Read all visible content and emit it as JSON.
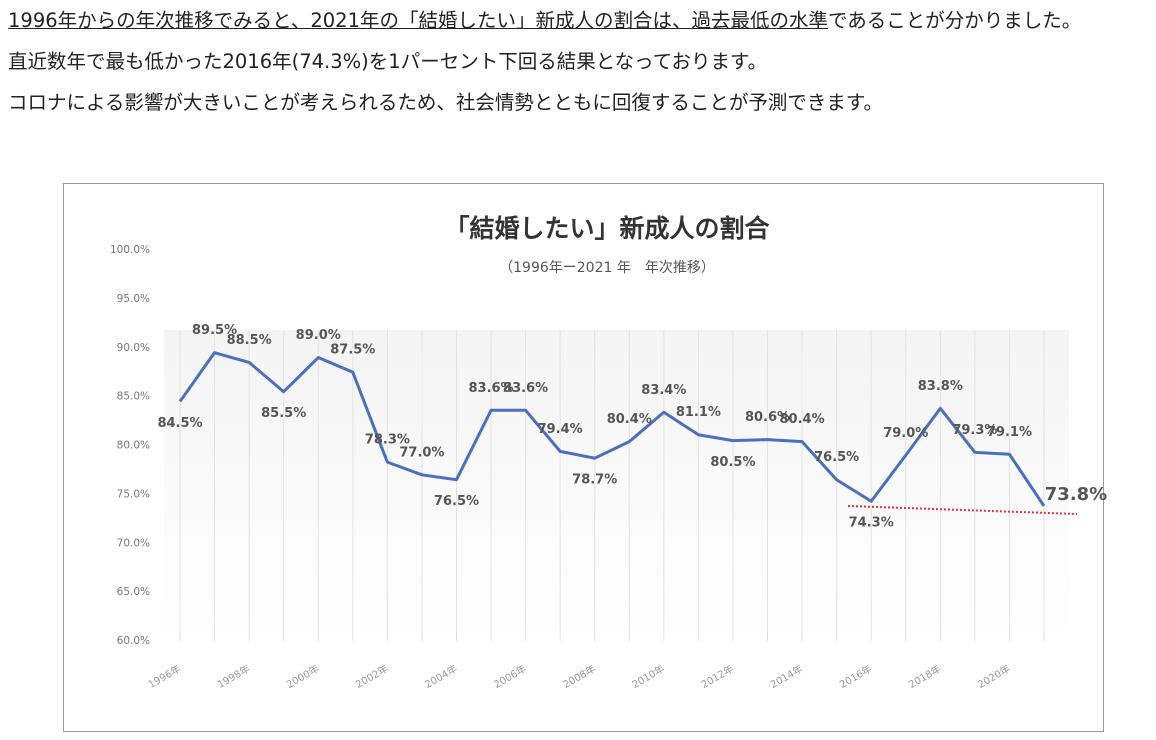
{
  "paragraphs": [
    {
      "underlined": "1996年からの年次推移でみると、2021年の「結婚したい」新成人の割合は、過去最低の水準",
      "text": "であることが分かりました。"
    },
    {
      "text": "直近数年で最も低かった2016年(74.3%)を1パーセント下回る結果となっております。"
    },
    {
      "text": "コロナによる影響が大きいことが考えられるため、社会情勢とともに回復することが予測できます。"
    }
  ],
  "chart_data": {
    "type": "line",
    "title": "「結婚したい」新成人の割合",
    "subtitle": "（1996年ー2021 年　年次推移）",
    "categories": [
      "1996年",
      null,
      "1998年",
      null,
      "2000年",
      null,
      "2002年",
      null,
      "2004年",
      null,
      "2006年",
      null,
      "2008年",
      null,
      "2010年",
      null,
      "2012年",
      null,
      "2014年",
      null,
      "2016年",
      null,
      "2018年",
      null,
      "2020年",
      null
    ],
    "series": [
      {
        "color": "#4a6fbf",
        "values": [
          84.5,
          89.5,
          88.5,
          85.5,
          89.0,
          87.5,
          78.3,
          77.0,
          76.5,
          83.6,
          83.6,
          79.4,
          78.7,
          80.4,
          83.4,
          81.1,
          80.5,
          80.6,
          80.4,
          76.5,
          74.3,
          79.0,
          83.8,
          79.3,
          79.1,
          73.8
        ],
        "value_labels": [
          "84.5%",
          "89.5%",
          "88.5%",
          "85.5%",
          "89.0%",
          "87.5%",
          "78.3%",
          "77.0%",
          "76.5%",
          "83.6%",
          "83.6%",
          "79.4%",
          "78.7%",
          "80.4%",
          "83.4%",
          "81.1%",
          "80.5%",
          "80.6%",
          "80.4%",
          "76.5%",
          "74.3%",
          "79.0%",
          "83.8%",
          "79.3%",
          "79.1%",
          "73.8%"
        ]
      }
    ],
    "ylim": [
      60,
      100
    ],
    "yticks": [
      {
        "value": 60,
        "label": "60.0%"
      },
      {
        "value": 65,
        "label": "65.0%"
      },
      {
        "value": 70,
        "label": "70.0%"
      },
      {
        "value": 75,
        "label": "75.0%"
      },
      {
        "value": 80,
        "label": "80.0%"
      },
      {
        "value": 85,
        "label": "85.0%"
      },
      {
        "value": 90,
        "label": "90.0%"
      },
      {
        "value": 95,
        "label": "95.0%"
      },
      {
        "value": 100,
        "label": "100.0%"
      }
    ],
    "grid": "x"
  }
}
